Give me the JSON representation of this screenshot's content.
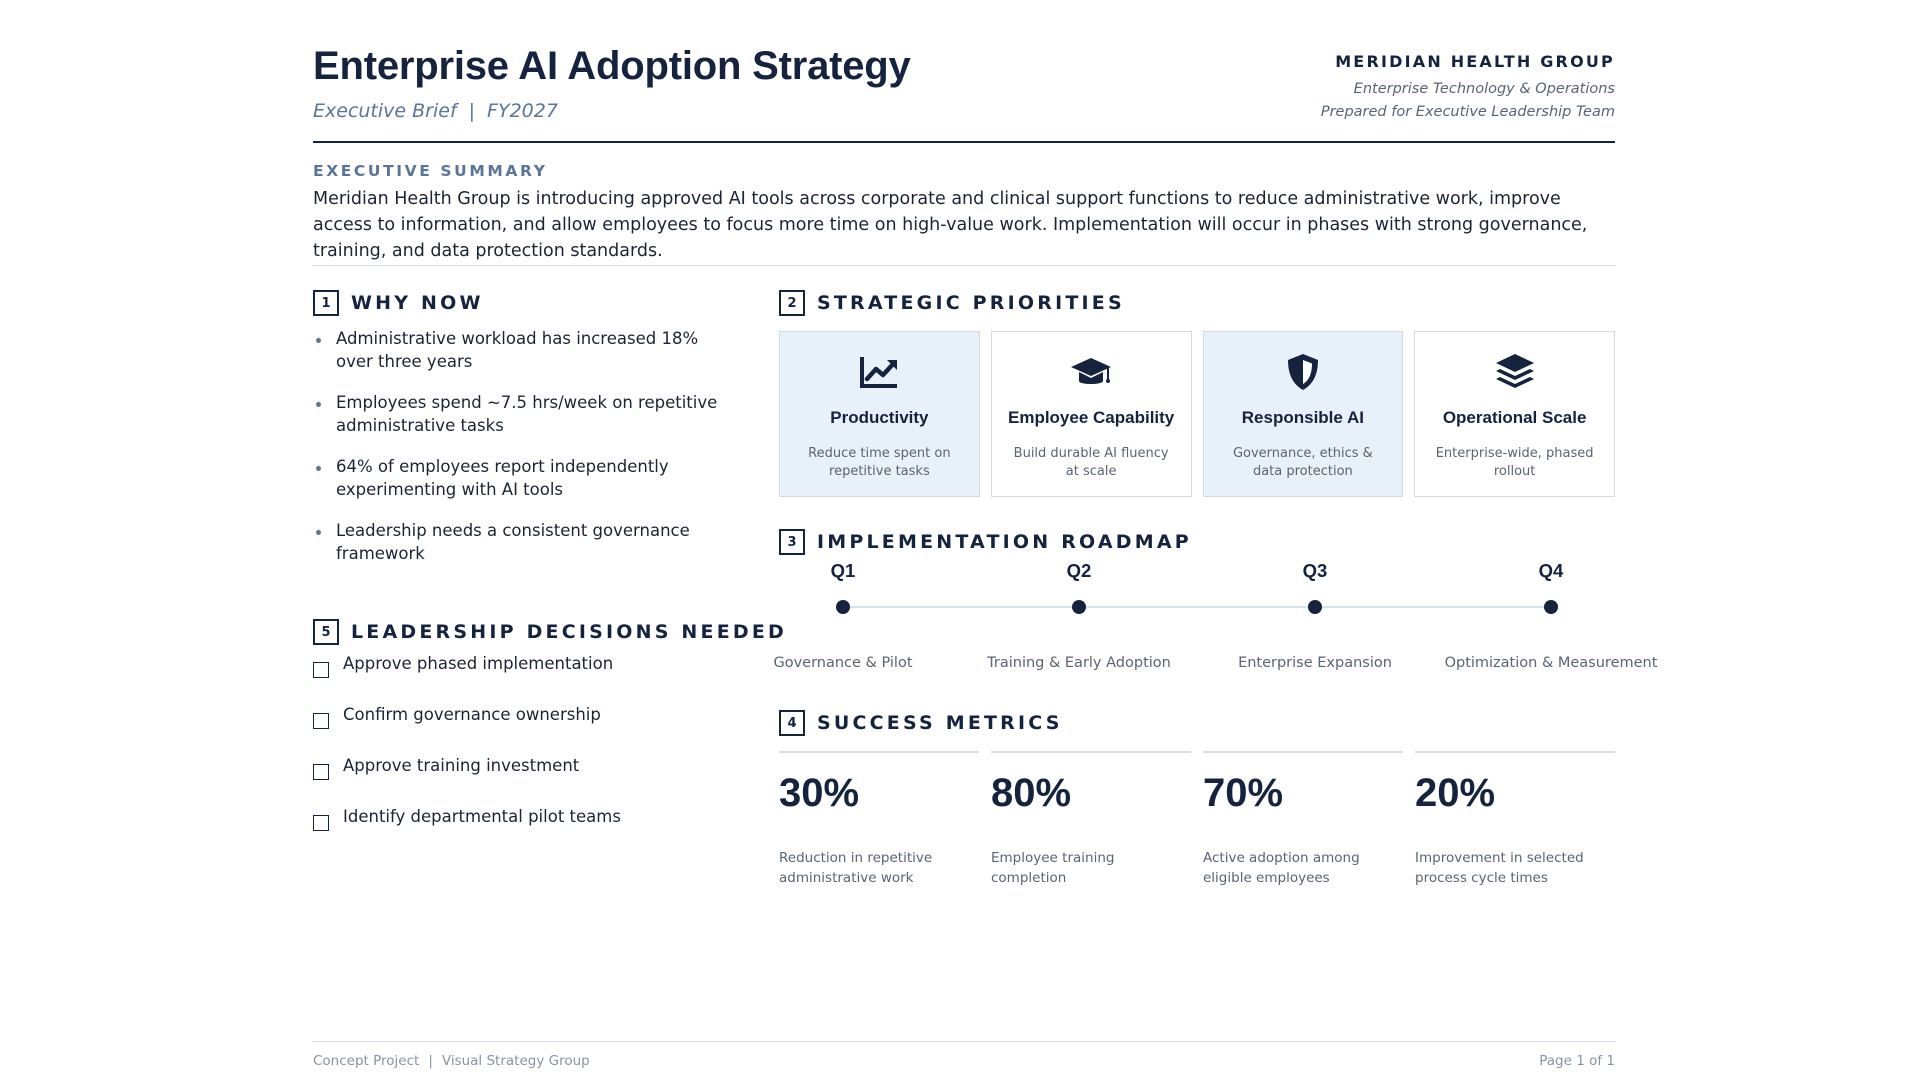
{
  "header": {
    "title": "Enterprise AI Adoption Strategy",
    "subtitle_left": "Executive Brief",
    "subtitle_separator": "|",
    "subtitle_right": "FY2027",
    "org_name": "MERIDIAN HEALTH GROUP",
    "org_line1": "Enterprise Technology & Operations",
    "org_line2": "Prepared for Executive Leadership Team"
  },
  "executive_summary": {
    "label": "EXECUTIVE SUMMARY",
    "text": "Meridian Health Group is introducing approved AI tools across corporate and clinical support functions to reduce administrative work, improve access to information, and allow employees to focus more time on high-value work. Implementation will occur in phases with strong governance, training, and data protection standards."
  },
  "why_now": {
    "number": "1",
    "title": "WHY NOW",
    "items": [
      "Administrative workload has increased 18% over three years",
      "Employees spend ~7.5 hrs/week on repetitive administrative tasks",
      "64% of employees report independently experimenting with AI tools",
      "Leadership needs a consistent governance framework"
    ]
  },
  "strategic_priorities": {
    "number": "2",
    "title": "STRATEGIC PRIORITIES",
    "cards": [
      {
        "icon": "trend-chart-icon",
        "title": "Productivity",
        "desc": "Reduce time spent on repetitive tasks",
        "shaded": true
      },
      {
        "icon": "graduation-cap-icon",
        "title": "Employee Capability",
        "desc": "Build durable AI fluency at scale",
        "shaded": false
      },
      {
        "icon": "shield-icon",
        "title": "Responsible AI",
        "desc": "Governance, ethics & data protection",
        "shaded": true
      },
      {
        "icon": "layers-icon",
        "title": "Operational Scale",
        "desc": "Enterprise-wide, phased rollout",
        "shaded": false
      }
    ]
  },
  "roadmap": {
    "number": "3",
    "title": "IMPLEMENTATION ROADMAP",
    "milestones": [
      {
        "quarter": "Q1",
        "label": "Governance & Pilot"
      },
      {
        "quarter": "Q2",
        "label": "Training & Early Adoption"
      },
      {
        "quarter": "Q3",
        "label": "Enterprise Expansion"
      },
      {
        "quarter": "Q4",
        "label": "Optimization & Measurement"
      }
    ]
  },
  "metrics": {
    "number": "4",
    "title": "SUCCESS METRICS",
    "items": [
      {
        "value": "30%",
        "desc": "Reduction in repetitive administrative work"
      },
      {
        "value": "80%",
        "desc": "Employee training completion"
      },
      {
        "value": "70%",
        "desc": "Active adoption among eligible employees"
      },
      {
        "value": "20%",
        "desc": "Improvement in selected process cycle times"
      }
    ]
  },
  "decisions": {
    "number": "5",
    "title": "LEADERSHIP DECISIONS NEEDED",
    "items": [
      "Approve phased implementation",
      "Confirm governance ownership",
      "Approve training investment",
      "Identify departmental pilot teams"
    ]
  },
  "footer": {
    "left_a": "Concept Project",
    "separator": "|",
    "left_b": "Visual Strategy Group",
    "right": "Page 1 of 1"
  },
  "colors": {
    "navy": "#15233f",
    "accent_blue": "#5b7599",
    "card_shade": "#e8f0f9",
    "muted_text": "#5a6473"
  }
}
